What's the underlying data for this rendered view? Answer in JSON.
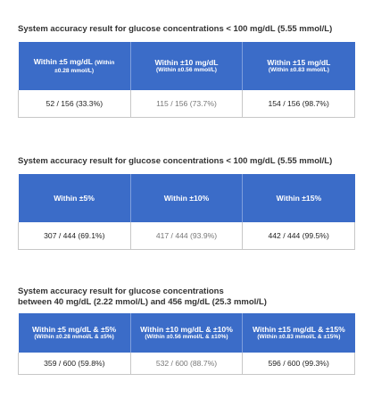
{
  "sections": [
    {
      "title": "System accuracy result for glucose concentrations < 100 mg/dL (5.55 mmol/L)",
      "headers": [
        {
          "main": "Within ±5 mg/dL",
          "inline_sub": "(Within",
          "sub": "±0.28 mmol/L)"
        },
        {
          "main": "Within ±10 mg/dL",
          "sub": "(Within ±0.56 mmol/L)"
        },
        {
          "main": "Within ±15 mg/dL",
          "sub": "(Within ±0.83 mmol/L)"
        }
      ],
      "values": [
        "52 / 156 (33.3%)",
        "115 / 156 (73.7%)",
        "154 / 156 (98.7%)"
      ]
    },
    {
      "title": "System accuracy result for glucose concentrations < 100 mg/dL (5.55 mmol/L)",
      "headers": [
        {
          "main": "Within ±5%"
        },
        {
          "main": "Within ±10%"
        },
        {
          "main": "Within ±15%"
        }
      ],
      "values": [
        "307 / 444 (69.1%)",
        "417 / 444 (93.9%)",
        "442 / 444 (99.5%)"
      ]
    },
    {
      "title_line1": "System accuracy result for glucose concentrations",
      "title_line2": "between 40 mg/dL (2.22 mmol/L) and 456 mg/dL (25.3 mmol/L)",
      "headers": [
        {
          "main": "Within ±5 mg/dL & ±5%",
          "sub": "(Within ±0.28 mmol/L & ±5%)"
        },
        {
          "main": "Within ±10 mg/dL & ±10%",
          "sub": "(Within ±0.56 mmol/L & ±10%)"
        },
        {
          "main": "Within ±15 mg/dL & ±15%",
          "sub": "(Within ±0.83 mmol/L & ±15%)"
        }
      ],
      "values": [
        "359 / 600 (59.8%)",
        "532 / 600 (88.7%)",
        "596 / 600 (99.3%)"
      ]
    }
  ],
  "colors": {
    "header_bg": "#3b6cc8",
    "header_text": "#ffffff",
    "cell_border": "#c7c7c7"
  }
}
